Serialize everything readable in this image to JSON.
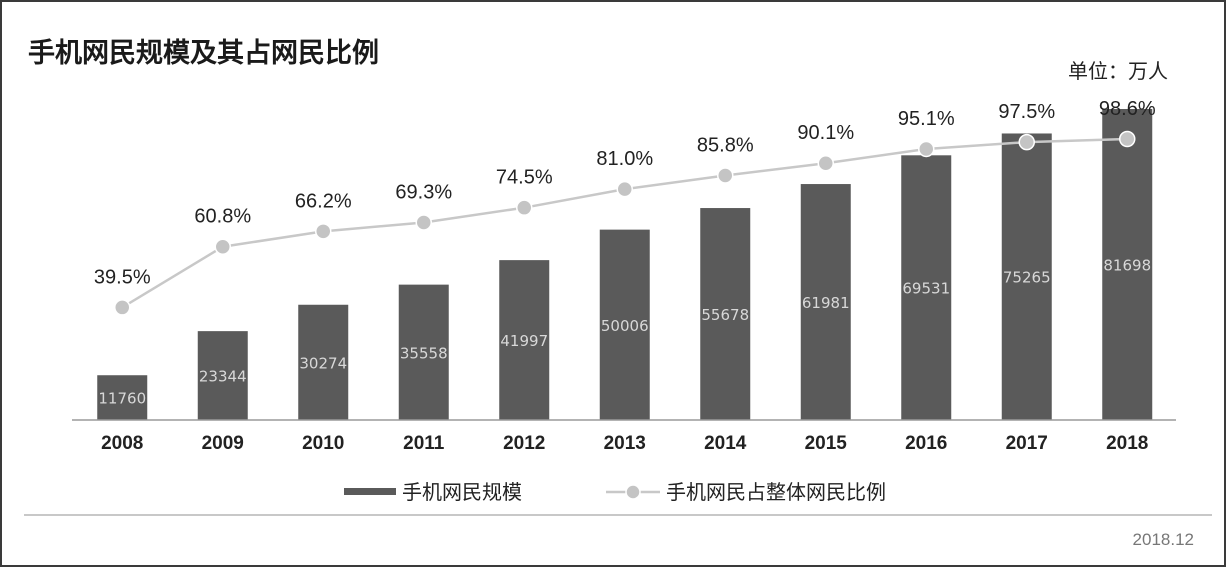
{
  "chart_data": {
    "type": "bar",
    "title": "手机网民规模及其占网民比例",
    "unit_label": "单位：万人",
    "categories": [
      "2008",
      "2009",
      "2010",
      "2011",
      "2012",
      "2013",
      "2014",
      "2015",
      "2016",
      "2017",
      "2018"
    ],
    "series": [
      {
        "name": "手机网民规模",
        "kind": "bar",
        "values": [
          11760,
          23344,
          30274,
          35558,
          41997,
          50006,
          55678,
          61981,
          69531,
          75265,
          81698
        ]
      },
      {
        "name": "手机网民占整体网民比例",
        "kind": "line",
        "values": [
          39.5,
          60.8,
          66.2,
          69.3,
          74.5,
          81.0,
          85.8,
          90.1,
          95.1,
          97.5,
          98.6
        ],
        "labels": [
          "39.5%",
          "60.8%",
          "66.2%",
          "69.3%",
          "74.5%",
          "81.0%",
          "85.8%",
          "90.1%",
          "95.1%",
          "97.5%",
          "98.6%"
        ]
      }
    ],
    "bar_ylim": [
      0,
      88000
    ],
    "line_ylim": [
      0,
      100
    ],
    "grid": false,
    "legend_position": "bottom-center",
    "colors": {
      "bar": "#5a5a5a",
      "line": "#c8c8c8",
      "marker": "#c4c4c4"
    },
    "footnote": "2018.12"
  }
}
